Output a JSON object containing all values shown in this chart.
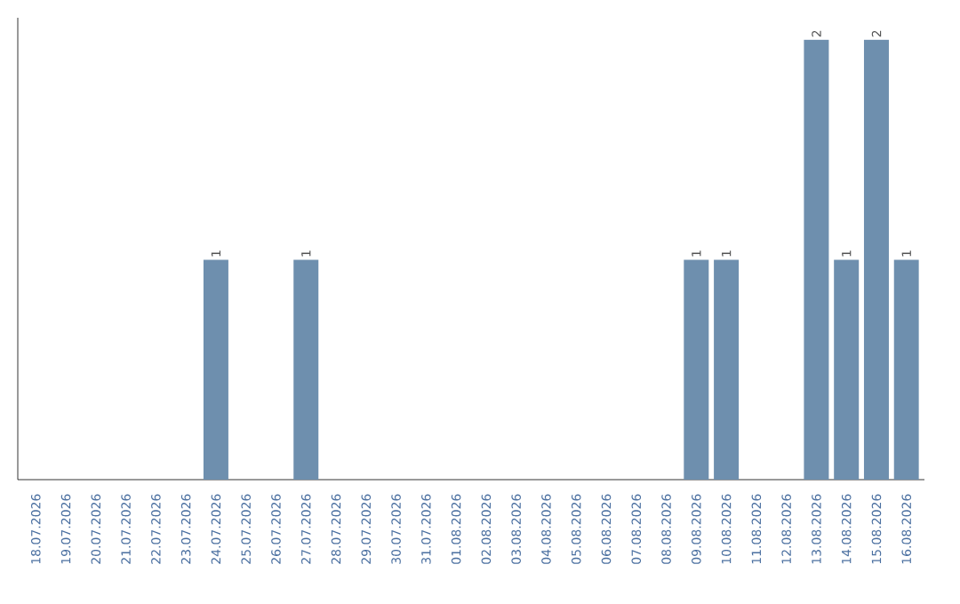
{
  "chart_data": {
    "type": "bar",
    "categories": [
      "18.07.2026",
      "19.07.2026",
      "20.07.2026",
      "21.07.2026",
      "22.07.2026",
      "23.07.2026",
      "24.07.2026",
      "25.07.2026",
      "26.07.2026",
      "27.07.2026",
      "28.07.2026",
      "29.07.2026",
      "30.07.2026",
      "31.07.2026",
      "01.08.2026",
      "02.08.2026",
      "03.08.2026",
      "04.08.2026",
      "05.08.2026",
      "06.08.2026",
      "07.08.2026",
      "08.08.2026",
      "09.08.2026",
      "10.08.2026",
      "11.08.2026",
      "12.08.2026",
      "13.08.2026",
      "14.08.2026",
      "15.08.2026",
      "16.08.2026"
    ],
    "values": [
      0,
      0,
      0,
      0,
      0,
      0,
      1,
      0,
      0,
      1,
      0,
      0,
      0,
      0,
      0,
      0,
      0,
      0,
      0,
      0,
      0,
      0,
      1,
      1,
      0,
      0,
      2,
      1,
      2,
      1
    ],
    "value_labels": [
      null,
      null,
      null,
      null,
      null,
      null,
      "1",
      null,
      null,
      "1",
      null,
      null,
      null,
      null,
      null,
      null,
      null,
      null,
      null,
      null,
      null,
      null,
      "1",
      "1",
      null,
      null,
      "2",
      "1",
      "2",
      "1"
    ],
    "color": "#6e8fae",
    "tick_labels": "x",
    "grid": false
  }
}
